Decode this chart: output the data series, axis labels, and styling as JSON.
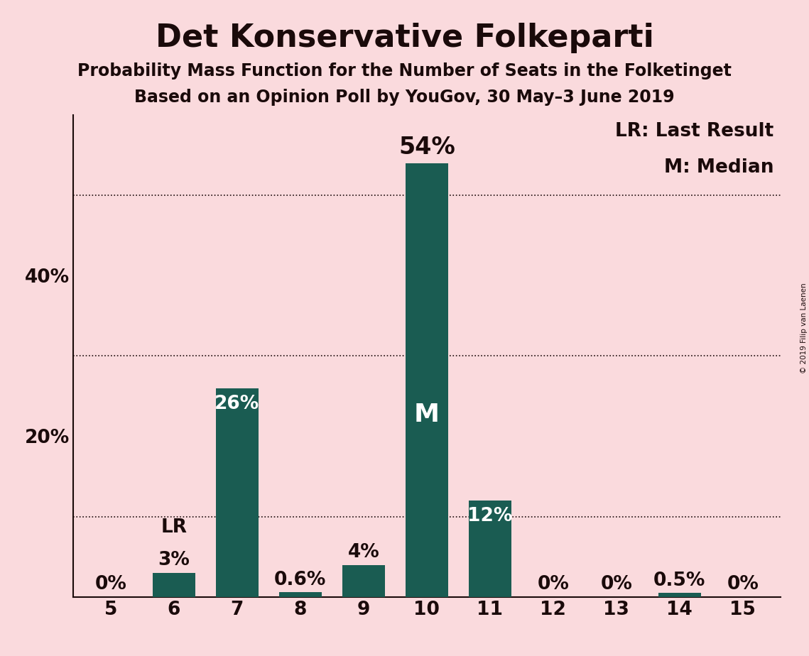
{
  "title": "Det Konservative Folkeparti",
  "subtitle1": "Probability Mass Function for the Number of Seats in the Folketinget",
  "subtitle2": "Based on an Opinion Poll by YouGov, 30 May–3 June 2019",
  "copyright": "© 2019 Filip van Laenen",
  "seats": [
    5,
    6,
    7,
    8,
    9,
    10,
    11,
    12,
    13,
    14,
    15
  ],
  "probabilities": [
    0.0,
    3.0,
    26.0,
    0.6,
    4.0,
    54.0,
    12.0,
    0.0,
    0.0,
    0.5,
    0.0
  ],
  "labels": [
    "0%",
    "3%",
    "26%",
    "0.6%",
    "4%",
    "54%",
    "12%",
    "0%",
    "0%",
    "0.5%",
    "0%"
  ],
  "bar_color": "#1a5c52",
  "background_color": "#fadadd",
  "text_color": "#1a0a0a",
  "label_color_inside": "#ffffff",
  "label_color_outside": "#1a0a0a",
  "median_seat": 10,
  "last_result_seat": 6,
  "yticks": [
    20,
    40
  ],
  "ytick_labels": [
    "20%",
    "40%"
  ],
  "grid_yticks": [
    10,
    30,
    50
  ],
  "ylim": [
    0,
    60
  ],
  "grid_color": "#1a0a0a",
  "legend_lr": "LR: Last Result",
  "legend_m": "M: Median",
  "title_fontsize": 32,
  "subtitle_fontsize": 17,
  "bar_label_fontsize": 19,
  "bar_label_fontsize_large": 24,
  "legend_fontsize": 19,
  "ytick_fontsize": 19,
  "xtick_fontsize": 19,
  "median_label_fontsize": 26
}
